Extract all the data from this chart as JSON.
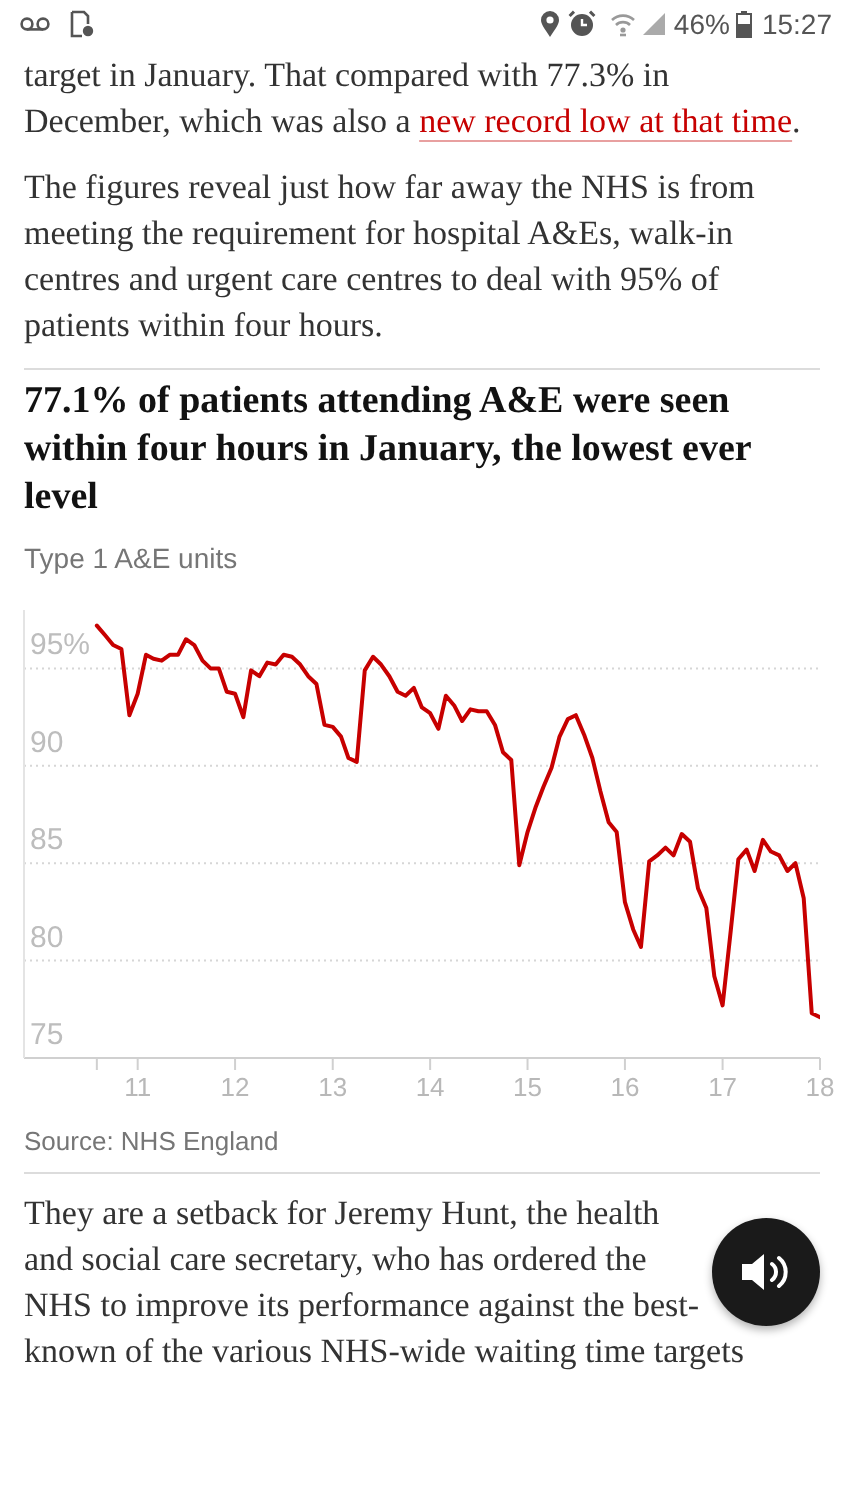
{
  "chart_data": {
    "type": "line",
    "title": "77.1% of patients attending A&E were seen within four hours in January, the lowest ever level",
    "subtitle": "Type 1 A&E units",
    "annotations": [
      "46%",
      "15:27",
      "target in January. That compared with 77.3% in December, which was also a",
      "new record low at that time",
      ".",
      "The figures reveal just how far away the NHS is from meeting the requirement for hospital A&Es, walk-in centres and urgent care centres to deal with 95% of patients within four hours.",
      "Source: NHS England",
      "They are a setback for Jeremy Hunt, the health and social care secretary, who has ordered the NHS to improve its performance against the best-known of the various NHS-wide waiting time targets"
    ],
    "x": [
      "2010-08",
      "2010-09",
      "2010-10",
      "2010-11",
      "2010-12",
      "2011-01",
      "2011-02",
      "2011-03",
      "2011-04",
      "2011-05",
      "2011-06",
      "2011-07",
      "2011-08",
      "2011-09",
      "2011-10",
      "2011-11",
      "2011-12",
      "2012-01",
      "2012-02",
      "2012-03",
      "2012-04",
      "2012-05",
      "2012-06",
      "2012-07",
      "2012-08",
      "2012-09",
      "2012-10",
      "2012-11",
      "2012-12",
      "2013-01",
      "2013-02",
      "2013-03",
      "2013-04",
      "2013-05",
      "2013-06",
      "2013-07",
      "2013-08",
      "2013-09",
      "2013-10",
      "2013-11",
      "2013-12",
      "2014-01",
      "2014-02",
      "2014-03",
      "2014-04",
      "2014-05",
      "2014-06",
      "2014-07",
      "2014-08",
      "2014-09",
      "2014-10",
      "2014-11",
      "2014-12",
      "2015-01",
      "2015-02",
      "2015-03",
      "2015-04",
      "2015-05",
      "2015-06",
      "2015-07",
      "2015-08",
      "2015-09",
      "2015-10",
      "2015-11",
      "2015-12",
      "2016-01",
      "2016-02",
      "2016-03",
      "2016-04",
      "2016-05",
      "2016-06",
      "2016-07",
      "2016-08",
      "2016-09",
      "2016-10",
      "2016-11",
      "2016-12",
      "2017-01",
      "2017-02",
      "2017-03",
      "2017-04",
      "2017-05",
      "2017-06",
      "2017-07",
      "2017-08",
      "2017-09",
      "2017-10",
      "2017-11",
      "2017-12",
      "2018-01"
    ],
    "values": [
      97.2,
      96.7,
      96.2,
      96.0,
      92.6,
      93.7,
      95.7,
      95.5,
      95.4,
      95.7,
      95.7,
      96.5,
      96.2,
      95.4,
      95.0,
      95.0,
      93.8,
      93.7,
      92.5,
      94.9,
      94.6,
      95.3,
      95.2,
      95.7,
      95.6,
      95.2,
      94.6,
      94.2,
      92.1,
      92.0,
      91.5,
      90.4,
      90.2,
      94.9,
      95.6,
      95.2,
      94.6,
      93.8,
      93.6,
      94.0,
      93.0,
      92.7,
      91.9,
      93.6,
      93.1,
      92.3,
      92.9,
      92.8,
      92.8,
      92.1,
      90.7,
      90.3,
      84.9,
      86.6,
      87.9,
      88.9,
      89.9,
      91.5,
      92.4,
      92.6,
      91.6,
      90.4,
      88.7,
      87.1,
      86.6,
      83.0,
      81.6,
      80.7,
      85.1,
      85.4,
      85.8,
      85.4,
      86.5,
      86.1,
      83.7,
      82.7,
      79.2,
      77.7,
      81.6,
      85.2,
      85.7,
      84.6,
      86.2,
      85.6,
      85.4,
      84.6,
      85.0,
      83.2,
      77.3,
      77.1
    ],
    "color": "#c70000",
    "xlim": [
      "2009-11",
      "2018-01"
    ],
    "xticks": [
      {
        "value": "2010-08",
        "label": null
      },
      {
        "value": "2011-01",
        "label": "11"
      },
      {
        "value": "2012-01",
        "label": "12"
      },
      {
        "value": "2013-01",
        "label": "13"
      },
      {
        "value": "2014-01",
        "label": "14"
      },
      {
        "value": "2015-01",
        "label": "15"
      },
      {
        "value": "2016-01",
        "label": "16"
      },
      {
        "value": "2017-01",
        "label": "17"
      },
      {
        "value": "2018-01",
        "label": "18"
      }
    ],
    "ylim": [
      75,
      98
    ],
    "yticks": [
      75,
      80,
      85,
      90,
      {
        "value": 95,
        "label": "95%"
      }
    ],
    "grid": "y"
  }
}
